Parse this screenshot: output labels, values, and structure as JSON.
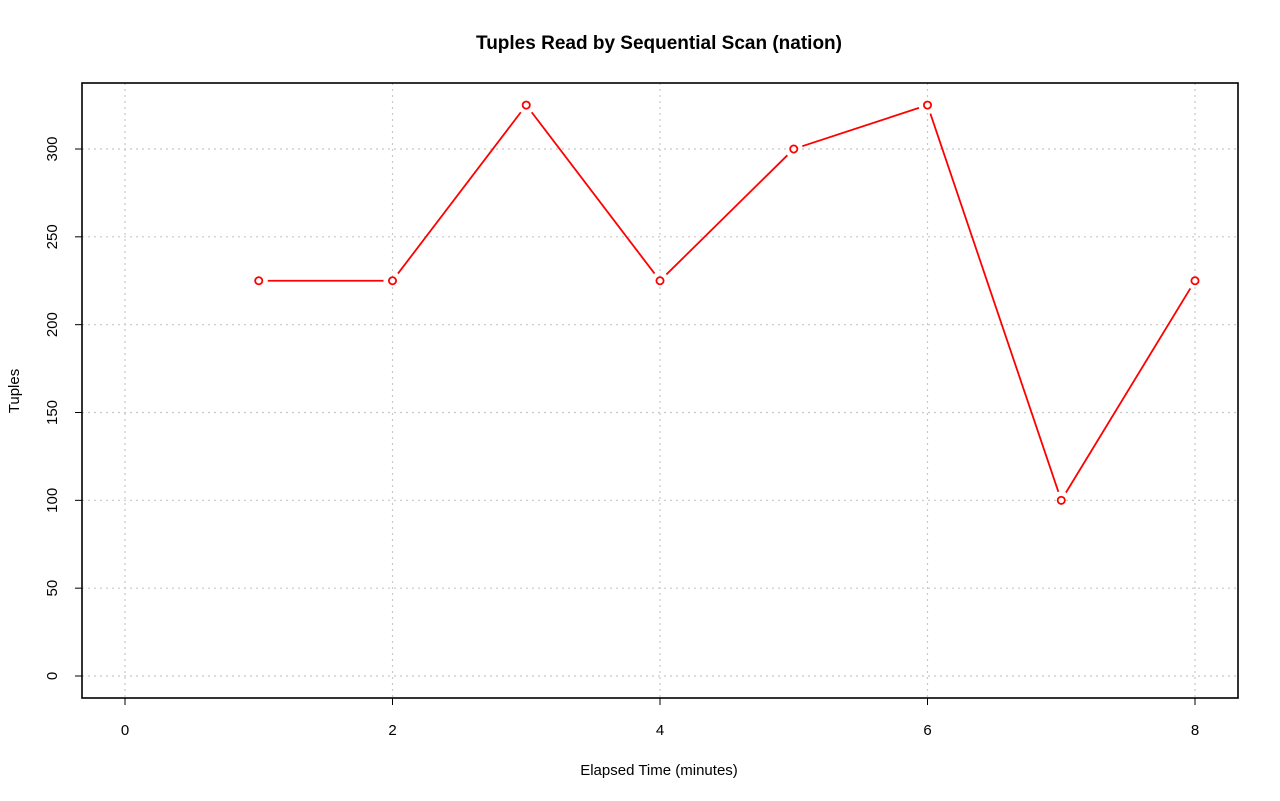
{
  "chart_data": {
    "type": "line",
    "title": "Tuples Read by Sequential Scan (nation)",
    "xlabel": "Elapsed Time (minutes)",
    "ylabel": "Tuples",
    "xlim": [
      0,
      8
    ],
    "ylim": [
      0,
      325
    ],
    "x_ticks": [
      0,
      2,
      4,
      6,
      8
    ],
    "y_ticks": [
      0,
      50,
      100,
      150,
      200,
      250,
      300
    ],
    "grid": true,
    "series": [
      {
        "x": [
          1,
          2,
          3,
          4,
          5,
          6,
          7,
          8
        ],
        "values": [
          225,
          225,
          325,
          225,
          300,
          325,
          100,
          225
        ],
        "color": "#ff0000",
        "marker": "open-circle"
      }
    ]
  }
}
